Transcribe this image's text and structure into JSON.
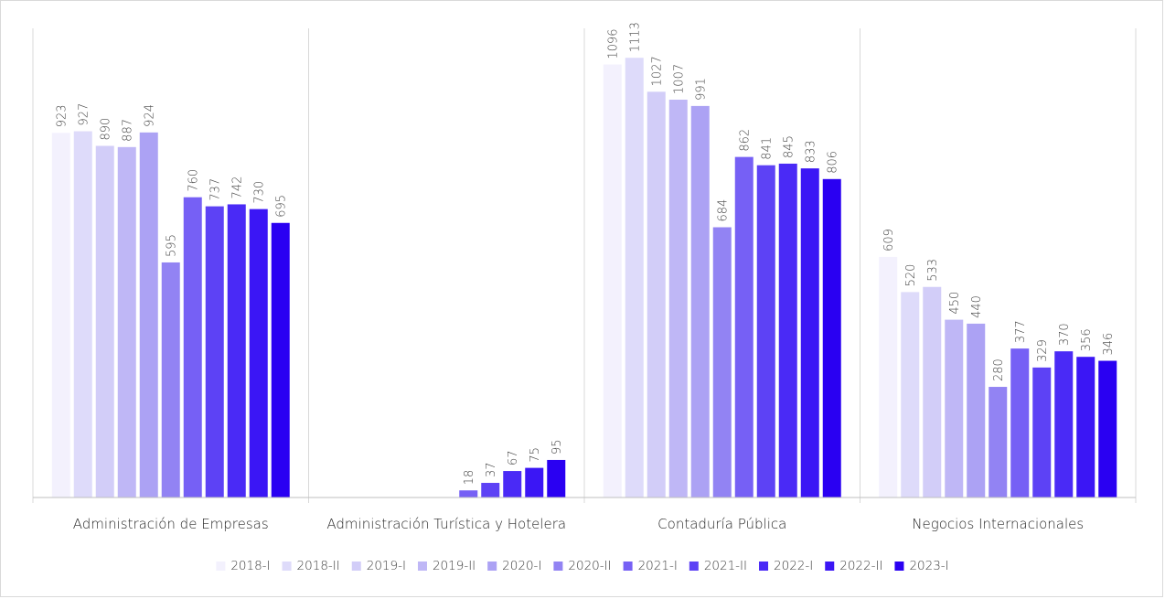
{
  "chart_data": {
    "type": "bar",
    "title": "",
    "xlabel": "",
    "ylabel": "",
    "ylim": [
      0,
      1150
    ],
    "grid": false,
    "legend_position": "bottom",
    "categories": [
      "Administración de Empresas",
      "Administración Turística y Hotelera",
      "Contaduría Pública",
      "Negocios Internacionales"
    ],
    "series": [
      {
        "name": "2018-I",
        "color": "#f3f1fd",
        "values": [
          923,
          null,
          1096,
          609
        ]
      },
      {
        "name": "2018-II",
        "color": "#dedbfa",
        "values": [
          927,
          null,
          1113,
          520
        ]
      },
      {
        "name": "2019-I",
        "color": "#d2cdf8",
        "values": [
          890,
          null,
          1027,
          533
        ]
      },
      {
        "name": "2019-II",
        "color": "#bfb7f6",
        "values": [
          887,
          null,
          1007,
          450
        ]
      },
      {
        "name": "2020-I",
        "color": "#aca2f4",
        "values": [
          924,
          null,
          991,
          440
        ]
      },
      {
        "name": "2020-II",
        "color": "#9283f3",
        "values": [
          595,
          null,
          684,
          280
        ]
      },
      {
        "name": "2021-I",
        "color": "#7660f5",
        "values": [
          760,
          18,
          862,
          377
        ]
      },
      {
        "name": "2021-II",
        "color": "#5d42f5",
        "values": [
          737,
          37,
          841,
          329
        ]
      },
      {
        "name": "2022-I",
        "color": "#4a2af6",
        "values": [
          742,
          67,
          845,
          370
        ]
      },
      {
        "name": "2022-II",
        "color": "#3b16f5",
        "values": [
          730,
          75,
          833,
          356
        ]
      },
      {
        "name": "2023-I",
        "color": "#2a00f2",
        "values": [
          695,
          95,
          806,
          346
        ]
      }
    ]
  }
}
